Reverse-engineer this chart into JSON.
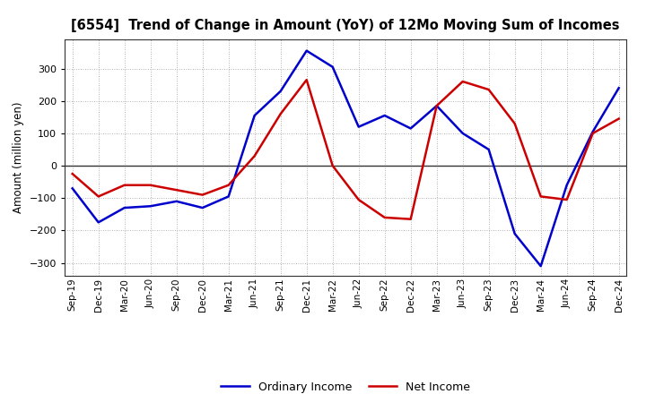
{
  "title": "[6554]  Trend of Change in Amount (YoY) of 12Mo Moving Sum of Incomes",
  "ylabel": "Amount (million yen)",
  "x_labels": [
    "Sep-19",
    "Dec-19",
    "Mar-20",
    "Jun-20",
    "Sep-20",
    "Dec-20",
    "Mar-21",
    "Jun-21",
    "Sep-21",
    "Dec-21",
    "Mar-22",
    "Jun-22",
    "Sep-22",
    "Dec-22",
    "Mar-23",
    "Jun-23",
    "Sep-23",
    "Dec-23",
    "Mar-24",
    "Jun-24",
    "Sep-24",
    "Dec-24"
  ],
  "ordinary_income": [
    -70,
    -175,
    -130,
    -125,
    -110,
    -130,
    -95,
    155,
    230,
    355,
    305,
    120,
    155,
    115,
    185,
    100,
    50,
    -210,
    -310,
    -60,
    105,
    240
  ],
  "net_income": [
    -25,
    -95,
    -60,
    -60,
    -75,
    -90,
    -60,
    30,
    160,
    265,
    0,
    -105,
    -160,
    -165,
    185,
    260,
    235,
    130,
    -95,
    -105,
    100,
    145
  ],
  "ylim": [
    -340,
    390
  ],
  "yticks": [
    -300,
    -200,
    -100,
    0,
    100,
    200,
    300
  ],
  "ordinary_color": "#0000cc",
  "net_color": "#cc0000",
  "bg_color": "#ffffff",
  "grid_color": "#999999",
  "line_width": 1.8,
  "legend_labels": [
    "Ordinary Income",
    "Net Income"
  ]
}
